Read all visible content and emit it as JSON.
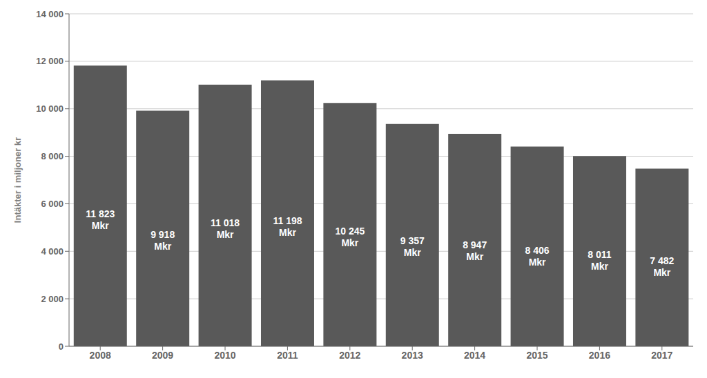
{
  "chart_data": {
    "type": "bar",
    "categories": [
      "2008",
      "2009",
      "2010",
      "2011",
      "2012",
      "2013",
      "2014",
      "2015",
      "2016",
      "2017"
    ],
    "values": [
      11823,
      9918,
      11018,
      11198,
      10245,
      9357,
      8947,
      8406,
      8011,
      7482
    ],
    "value_labels": [
      "11 823\nMkr",
      "9 918\nMkr",
      "11 018\nMkr",
      "11 198\nMkr",
      "10 245\nMkr",
      "9 357\nMkr",
      "8 947\nMkr",
      "8 406\nMkr",
      "8 011\nMkr",
      "7 482\nMkr"
    ],
    "data_labels": true,
    "color": "#595959",
    "ylabel": "Intäkter i miljoner kr",
    "ylim": [
      0,
      14000
    ],
    "yticks": [
      0,
      {
        "value": 2000,
        "label": "2 000"
      },
      {
        "value": 4000,
        "label": "4 000"
      },
      {
        "value": 6000,
        "label": "6 000"
      },
      {
        "value": 8000,
        "label": "8 000"
      },
      {
        "value": 10000,
        "label": "10 000"
      },
      {
        "value": 12000,
        "label": "12 000"
      },
      {
        "value": 14000,
        "label": "14 000"
      }
    ],
    "grid": true
  }
}
